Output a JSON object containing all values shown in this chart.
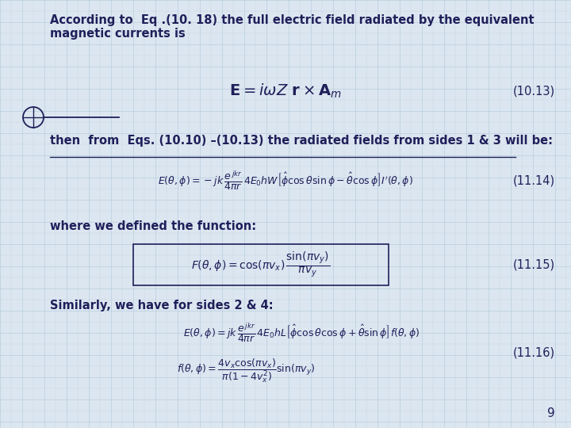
{
  "background_color": "#dce6f0",
  "grid_color": "#b8cfe0",
  "text_color": "#1f1f5a",
  "title_text": "According to  Eq .(10. 18) the full electric field radiated by the equivalent\nmagnetic currents is",
  "eq1_label": "(10.13)",
  "line1_text": "then  from  Eqs. (10.10) –(10.13) the radiated fields from sides 1 & 3 will be:",
  "eq2_label": "(11.14)",
  "line2_text": "where we defined the function:",
  "eq3_label": "(11.15)",
  "line3_text": "Similarly, we have for sides 2 & 4:",
  "eq4_label": "(11.16)",
  "page_number": "9",
  "eq1": "$\\mathbf{E} = i\\omega Z\\ \\mathbf{r} \\times \\mathbf{A}_{m}$",
  "eq2": "$E(\\theta,\\phi) = -jk\\,\\dfrac{e^{\\,jkr}}{4\\pi r}\\,4E_0hW\\left[\\hat{\\phi}\\cos\\theta\\sin\\phi - \\hat{\\theta}\\cos\\phi\\right]I'(\\theta,\\phi)$",
  "eq3": "$F(\\theta,\\phi) = \\cos(\\pi v_x)\\,\\dfrac{\\sin(\\pi v_y)}{\\pi v_y}$",
  "eq4a": "$E(\\theta,\\phi) = jk\\,\\dfrac{e^{\\,jkr}}{4\\pi r}\\,4E_0hL\\left[\\hat{\\phi}\\cos\\theta\\cos\\phi + \\hat{\\theta}\\sin\\phi\\right]f(\\theta,\\phi)$",
  "eq4b": "$f(\\theta,\\phi) = \\dfrac{4v_x\\cos(\\pi v_x)}{\\pi(1 - 4v_x^2)}\\sin(\\pi v_y)$"
}
